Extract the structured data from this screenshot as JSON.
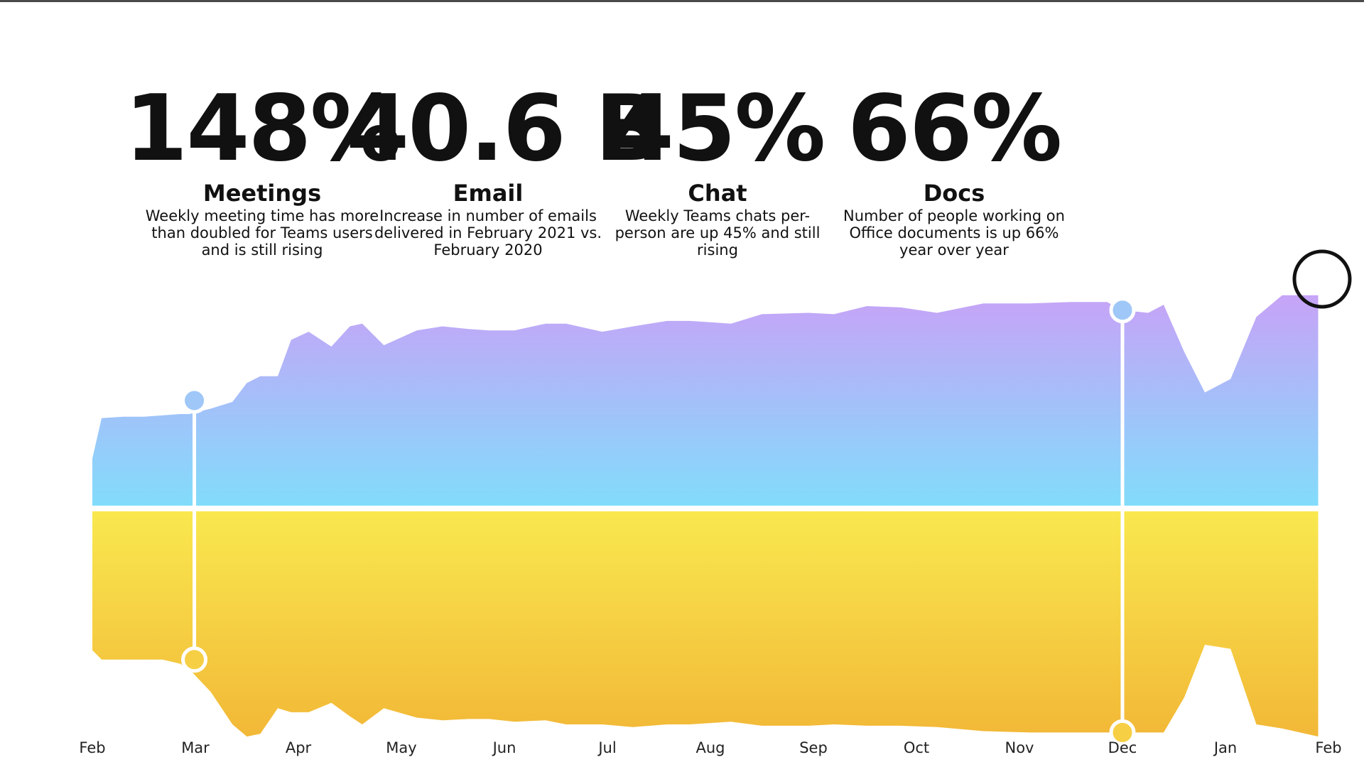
{
  "stats": [
    {
      "value": "148%",
      "name": "Meetings",
      "desc": "Weekly meeting time has more than doubled for Teams users and is still rising"
    },
    {
      "value": "40.6 B",
      "name": "Email",
      "desc": "Increase in number of emails delivered in February 2021 vs. February 2020"
    },
    {
      "value": "45%",
      "name": "Chat",
      "desc": "Weekly Teams chats per-person are up 45% and still rising"
    },
    {
      "value": "66%",
      "name": "Docs",
      "desc": "Number of people working on Office documents is up 66% year over year"
    }
  ],
  "chart_data": {
    "type": "area",
    "title": "",
    "xlabel": "",
    "ylabel": "",
    "categories": [
      "Feb",
      "Mar",
      "Apr",
      "May",
      "Jun",
      "Jul",
      "Aug",
      "Sep",
      "Oct",
      "Nov",
      "Dec",
      "Jan",
      "Feb"
    ],
    "x": [
      0,
      0.09,
      0.3,
      0.5,
      0.68,
      0.85,
      0.94,
      1.15,
      1.36,
      1.5,
      1.63,
      1.8,
      1.93,
      2.1,
      2.32,
      2.5,
      2.62,
      2.83,
      3.15,
      3.4,
      3.65,
      3.85,
      4.1,
      4.4,
      4.6,
      4.95,
      5.25,
      5.58,
      5.8,
      6.2,
      6.5,
      6.95,
      7.2,
      7.52,
      7.85,
      8.2,
      8.65,
      9.1,
      9.5,
      9.85,
      10.0,
      10.25,
      10.4,
      10.6,
      10.8,
      11.05,
      11.3,
      11.55,
      11.9
    ],
    "series": [
      {
        "values": [
          0.37,
          0.67,
          0.68,
          0.68,
          0.69,
          0.7,
          0.7,
          0.74,
          0.79,
          0.93,
          0.98,
          0.98,
          1.25,
          1.31,
          1.2,
          1.35,
          1.37,
          1.21,
          1.32,
          1.35,
          1.33,
          1.32,
          1.32,
          1.37,
          1.37,
          1.31,
          1.35,
          1.39,
          1.39,
          1.37,
          1.44,
          1.45,
          1.44,
          1.5,
          1.49,
          1.45,
          1.52,
          1.52,
          1.53,
          1.53,
          1.47,
          1.45,
          1.51,
          1.16,
          0.86,
          0.96,
          1.42,
          1.58,
          1.58
        ],
        "color_top": "#c7a3f7",
        "color_bottom": "#82dcfb"
      },
      {
        "values": [
          -1.05,
          -1.12,
          -1.12,
          -1.12,
          -1.12,
          -1.15,
          -1.19,
          -1.36,
          -1.6,
          -1.69,
          -1.67,
          -1.48,
          -1.51,
          -1.51,
          -1.44,
          -1.54,
          -1.6,
          -1.48,
          -1.55,
          -1.57,
          -1.56,
          -1.56,
          -1.58,
          -1.57,
          -1.6,
          -1.6,
          -1.62,
          -1.6,
          -1.6,
          -1.58,
          -1.61,
          -1.61,
          -1.6,
          -1.61,
          -1.61,
          -1.62,
          -1.65,
          -1.66,
          -1.66,
          -1.66,
          -1.66,
          -1.66,
          -1.66,
          -1.4,
          -1.01,
          -1.04,
          -1.6,
          -1.63,
          -1.69
        ],
        "color_top": "#f9e84f",
        "color_bottom": "#f2b837"
      }
    ],
    "markers": [
      {
        "x": 0.99,
        "top": 0.8,
        "bottom": -1.12
      },
      {
        "x": 10.0,
        "top": 1.47,
        "bottom": -1.66
      }
    ],
    "grid": false,
    "legend": "none"
  }
}
